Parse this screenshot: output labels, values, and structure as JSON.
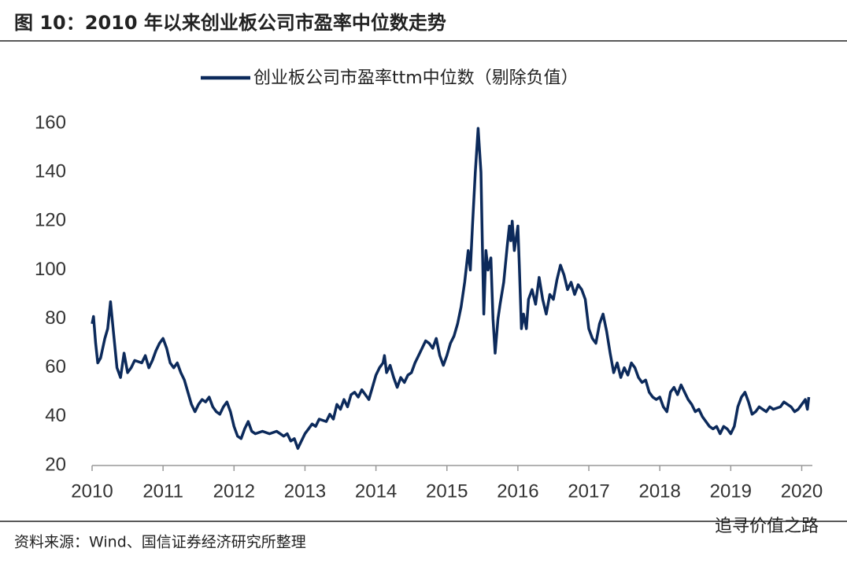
{
  "chart_data": {
    "type": "line",
    "title": "图 10：2010 年以来创业板公司市盈率中位数走势",
    "source": "资料来源：Wind、国信证券经济研究所整理",
    "watermark": "追寻价值之路",
    "x": [
      2010.0,
      2010.02,
      2010.05,
      2010.08,
      2010.12,
      2010.18,
      2010.22,
      2010.26,
      2010.3,
      2010.35,
      2010.4,
      2010.45,
      2010.5,
      2010.55,
      2010.6,
      2010.7,
      2010.75,
      2010.8,
      2010.85,
      2010.9,
      2010.95,
      2011.0,
      2011.05,
      2011.1,
      2011.15,
      2011.2,
      2011.25,
      2011.3,
      2011.35,
      2011.4,
      2011.45,
      2011.5,
      2011.55,
      2011.6,
      2011.65,
      2011.7,
      2011.75,
      2011.8,
      2011.85,
      2011.9,
      2011.95,
      2012.0,
      2012.05,
      2012.1,
      2012.15,
      2012.2,
      2012.25,
      2012.3,
      2012.4,
      2012.5,
      2012.6,
      2012.7,
      2012.75,
      2012.8,
      2012.85,
      2012.9,
      2012.95,
      2013.0,
      2013.05,
      2013.1,
      2013.15,
      2013.2,
      2013.3,
      2013.35,
      2013.4,
      2013.45,
      2013.5,
      2013.55,
      2013.6,
      2013.65,
      2013.7,
      2013.75,
      2013.8,
      2013.85,
      2013.9,
      2013.95,
      2014.0,
      2014.05,
      2014.1,
      2014.12,
      2014.15,
      2014.2,
      2014.25,
      2014.3,
      2014.35,
      2014.4,
      2014.45,
      2014.5,
      2014.55,
      2014.6,
      2014.65,
      2014.7,
      2014.75,
      2014.8,
      2014.85,
      2014.9,
      2014.95,
      2015.0,
      2015.05,
      2015.1,
      2015.15,
      2015.2,
      2015.25,
      2015.3,
      2015.33,
      2015.36,
      2015.4,
      2015.44,
      2015.48,
      2015.5,
      2015.52,
      2015.55,
      2015.58,
      2015.62,
      2015.65,
      2015.68,
      2015.72,
      2015.75,
      2015.8,
      2015.85,
      2015.88,
      2015.9,
      2015.92,
      2015.95,
      2016.0,
      2016.02,
      2016.05,
      2016.08,
      2016.12,
      2016.15,
      2016.2,
      2016.25,
      2016.3,
      2016.35,
      2016.4,
      2016.45,
      2016.5,
      2016.55,
      2016.6,
      2016.65,
      2016.7,
      2016.75,
      2016.8,
      2016.85,
      2016.9,
      2016.95,
      2017.0,
      2017.05,
      2017.1,
      2017.15,
      2017.2,
      2017.25,
      2017.3,
      2017.35,
      2017.4,
      2017.45,
      2017.5,
      2017.55,
      2017.6,
      2017.65,
      2017.7,
      2017.75,
      2017.8,
      2017.85,
      2017.9,
      2017.95,
      2018.0,
      2018.05,
      2018.1,
      2018.15,
      2018.2,
      2018.25,
      2018.3,
      2018.35,
      2018.4,
      2018.45,
      2018.5,
      2018.55,
      2018.6,
      2018.65,
      2018.7,
      2018.75,
      2018.8,
      2018.85,
      2018.9,
      2018.95,
      2019.0,
      2019.05,
      2019.1,
      2019.15,
      2019.2,
      2019.25,
      2019.3,
      2019.35,
      2019.4,
      2019.5,
      2019.55,
      2019.6,
      2019.7,
      2019.75,
      2019.8,
      2019.85,
      2019.9,
      2019.95,
      2020.0,
      2020.05,
      2020.08,
      2020.1
    ],
    "series": [
      {
        "name": "创业板公司市盈率ttm中位数（剔除负值）",
        "color": "#0c2a5b",
        "values": [
          78,
          81,
          70,
          62,
          64,
          72,
          76,
          87,
          75,
          60,
          56,
          66,
          58,
          60,
          63,
          62,
          65,
          60,
          63,
          67,
          70,
          72,
          68,
          62,
          60,
          62,
          58,
          55,
          50,
          45,
          42,
          45,
          47,
          46,
          48,
          44,
          42,
          41,
          44,
          46,
          42,
          36,
          32,
          31,
          35,
          38,
          34,
          33,
          34,
          33,
          34,
          32,
          33,
          30,
          31,
          27,
          30,
          33,
          35,
          37,
          36,
          39,
          38,
          41,
          39,
          45,
          43,
          47,
          44,
          49,
          50,
          48,
          51,
          49,
          47,
          52,
          57,
          60,
          62,
          65,
          58,
          61,
          56,
          52,
          56,
          54,
          57,
          58,
          62,
          65,
          68,
          71,
          70,
          68,
          72,
          65,
          61,
          65,
          70,
          73,
          78,
          85,
          95,
          108,
          100,
          118,
          140,
          158,
          140,
          110,
          82,
          108,
          100,
          105,
          80,
          66,
          80,
          86,
          95,
          110,
          118,
          112,
          120,
          108,
          118,
          102,
          76,
          82,
          76,
          88,
          92,
          86,
          97,
          88,
          82,
          90,
          88,
          96,
          102,
          98,
          92,
          95,
          90,
          94,
          92,
          88,
          76,
          72,
          70,
          78,
          82,
          75,
          66,
          58,
          62,
          56,
          60,
          57,
          62,
          60,
          56,
          54,
          55,
          50,
          48,
          47,
          48,
          44,
          42,
          50,
          52,
          49,
          53,
          50,
          47,
          45,
          42,
          43,
          40,
          38,
          36,
          35,
          36,
          33,
          36,
          35,
          33,
          36,
          44,
          48,
          50,
          46,
          41,
          42,
          44,
          42,
          44,
          43,
          44,
          46,
          45,
          44,
          42,
          43,
          45,
          47,
          43,
          48
        ]
      }
    ],
    "xlim": [
      2010,
      2020.15
    ],
    "xticks": [
      2010,
      2011,
      2012,
      2013,
      2014,
      2015,
      2016,
      2017,
      2018,
      2019,
      2020
    ],
    "ylim": [
      20,
      160
    ],
    "yticks": [
      20,
      40,
      60,
      80,
      100,
      120,
      140,
      160
    ],
    "grid": false
  }
}
